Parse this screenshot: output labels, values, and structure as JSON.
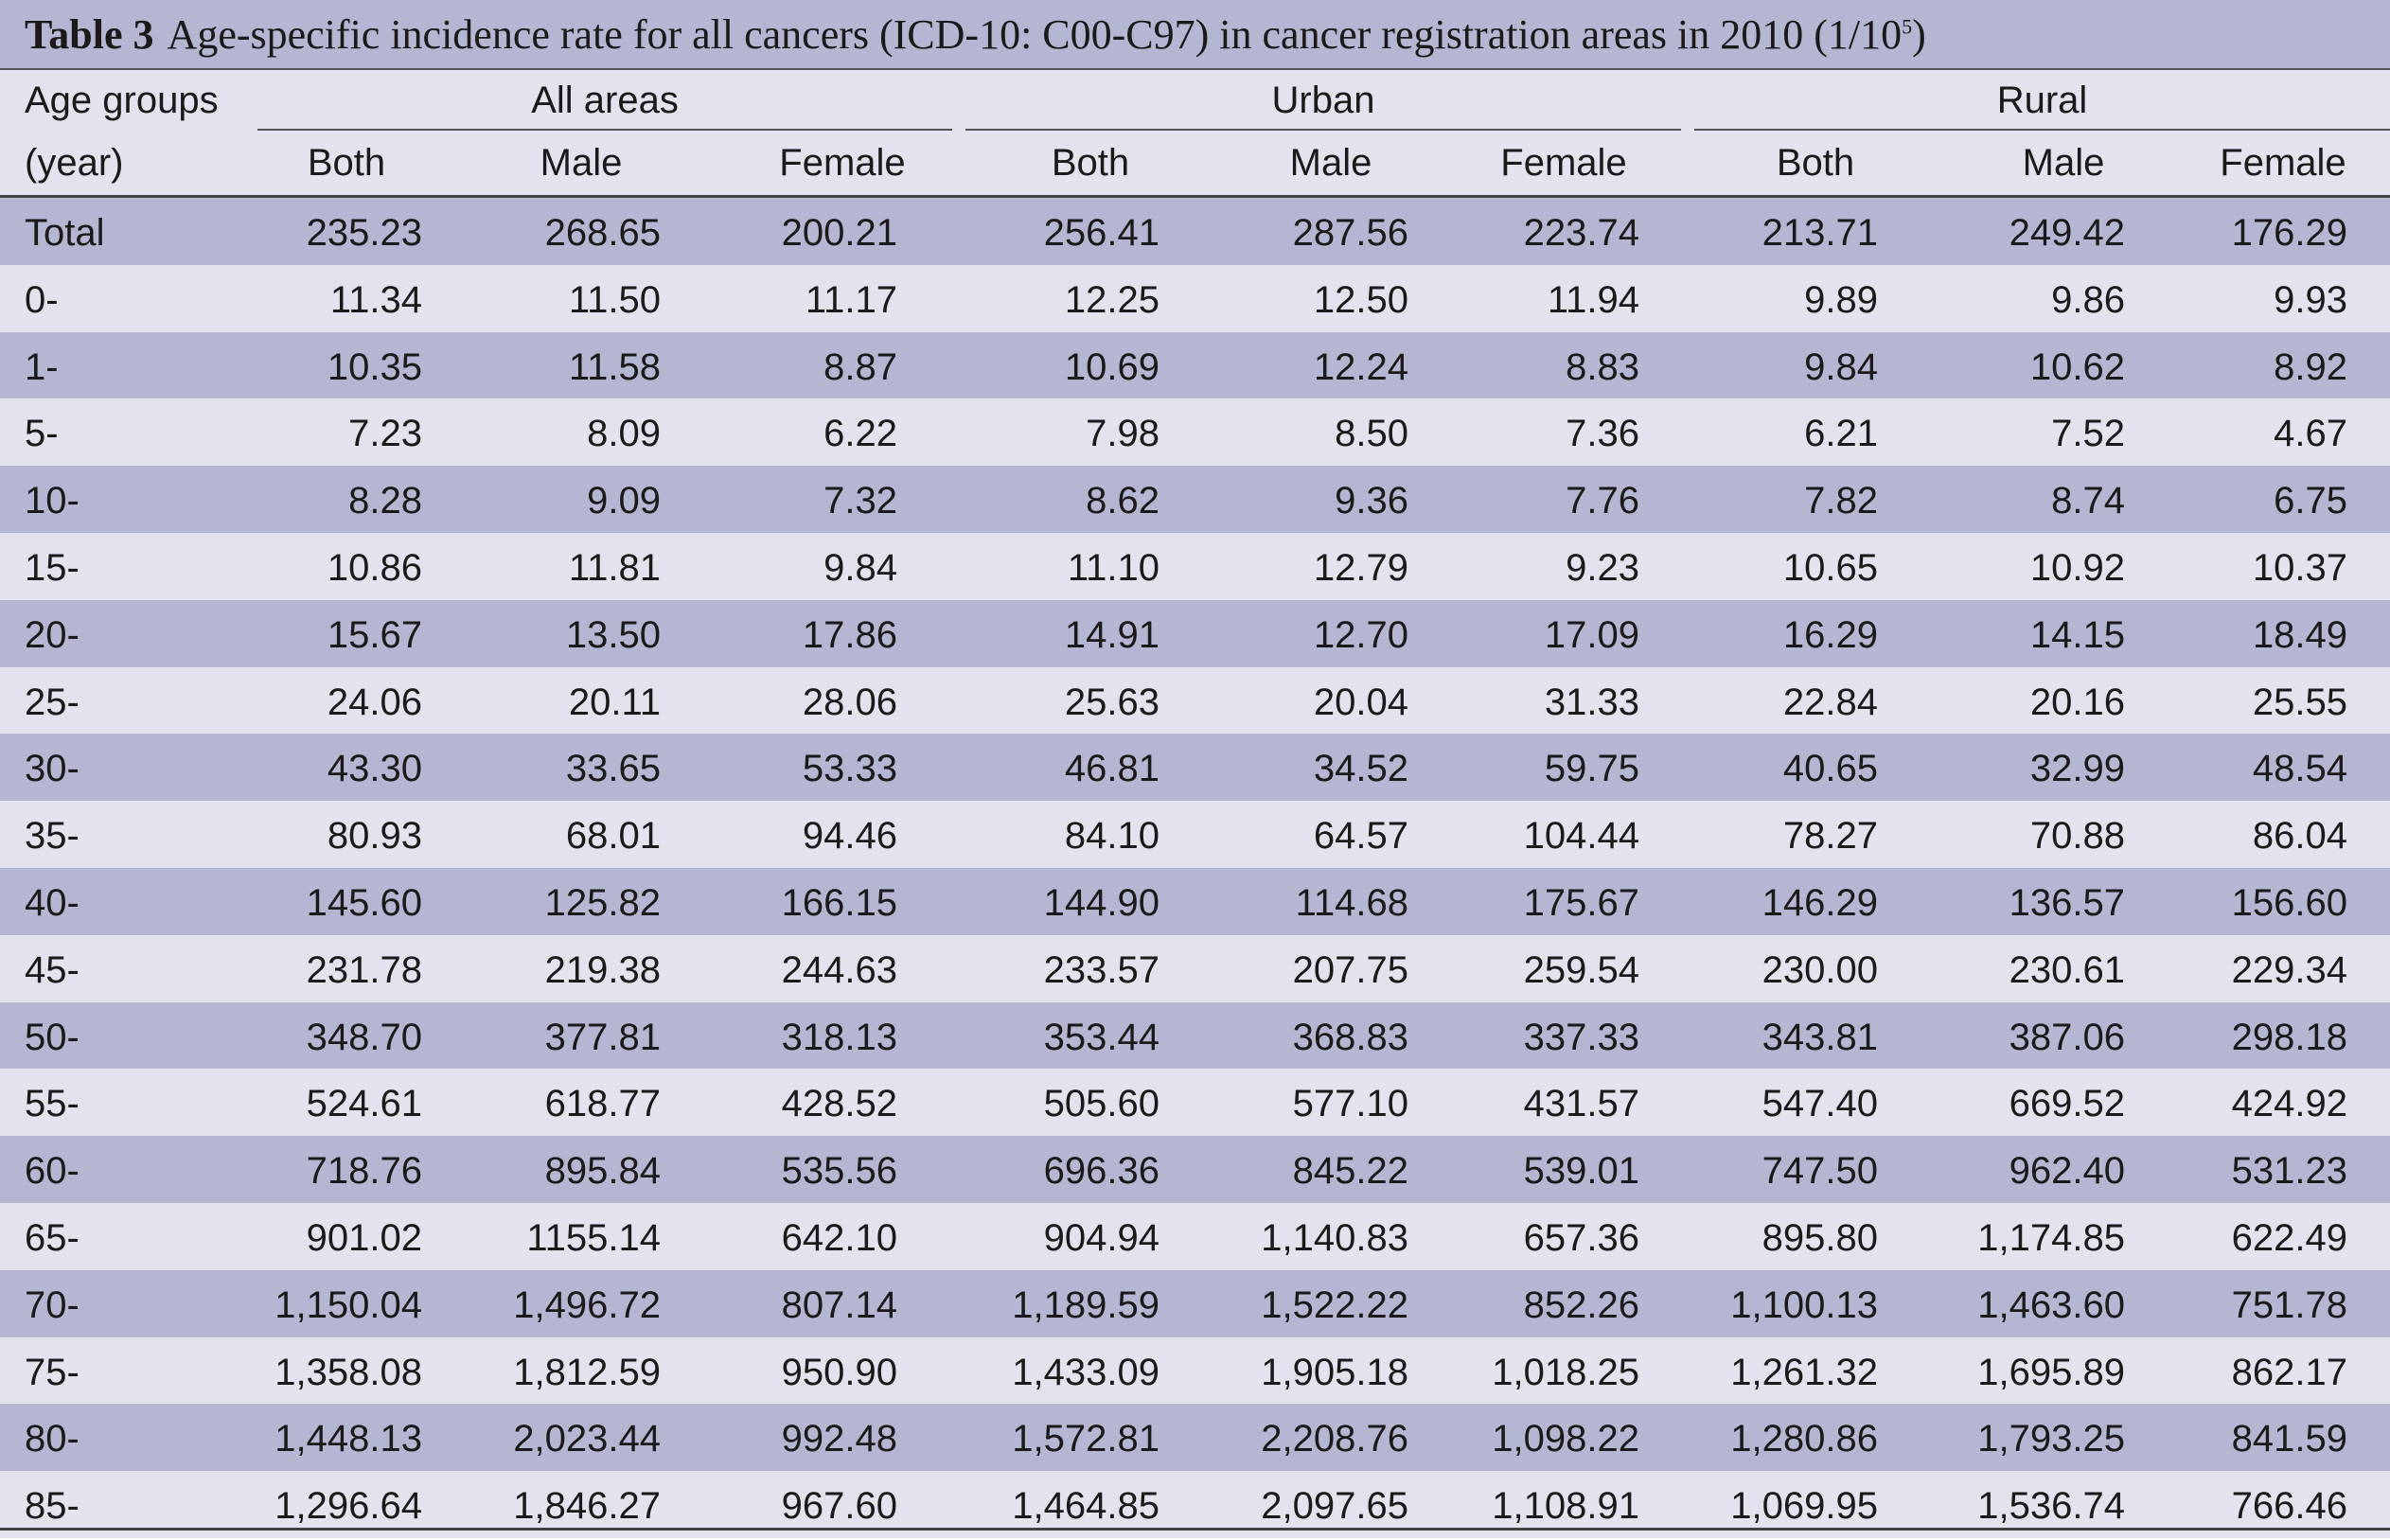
{
  "title": {
    "label": "Table 3",
    "text": "Age-specific incidence rate for all cancers (ICD-10: C00-C97) in cancer registration areas in 2010 (1/10",
    "sup": "5",
    "close": ")"
  },
  "header": {
    "age_groups_line1": "Age groups",
    "age_groups_line2": "(year)",
    "groups": [
      "All areas",
      "Urban",
      "Rural"
    ],
    "subcols": [
      "Both",
      "Male",
      "Female",
      "Both",
      "Male",
      "Female",
      "Both",
      "Male",
      "Female"
    ]
  },
  "rows": [
    {
      "label": "Total",
      "values": [
        "235.23",
        "268.65",
        "200.21",
        "256.41",
        "287.56",
        "223.74",
        "213.71",
        "249.42",
        "176.29"
      ]
    },
    {
      "label": "0-",
      "values": [
        "11.34",
        "11.50",
        "11.17",
        "12.25",
        "12.50",
        "11.94",
        "9.89",
        "9.86",
        "9.93"
      ]
    },
    {
      "label": "1-",
      "values": [
        "10.35",
        "11.58",
        "8.87",
        "10.69",
        "12.24",
        "8.83",
        "9.84",
        "10.62",
        "8.92"
      ]
    },
    {
      "label": "5-",
      "values": [
        "7.23",
        "8.09",
        "6.22",
        "7.98",
        "8.50",
        "7.36",
        "6.21",
        "7.52",
        "4.67"
      ]
    },
    {
      "label": "10-",
      "values": [
        "8.28",
        "9.09",
        "7.32",
        "8.62",
        "9.36",
        "7.76",
        "7.82",
        "8.74",
        "6.75"
      ]
    },
    {
      "label": "15-",
      "values": [
        "10.86",
        "11.81",
        "9.84",
        "11.10",
        "12.79",
        "9.23",
        "10.65",
        "10.92",
        "10.37"
      ]
    },
    {
      "label": "20-",
      "values": [
        "15.67",
        "13.50",
        "17.86",
        "14.91",
        "12.70",
        "17.09",
        "16.29",
        "14.15",
        "18.49"
      ]
    },
    {
      "label": "25-",
      "values": [
        "24.06",
        "20.11",
        "28.06",
        "25.63",
        "20.04",
        "31.33",
        "22.84",
        "20.16",
        "25.55"
      ]
    },
    {
      "label": "30-",
      "values": [
        "43.30",
        "33.65",
        "53.33",
        "46.81",
        "34.52",
        "59.75",
        "40.65",
        "32.99",
        "48.54"
      ]
    },
    {
      "label": "35-",
      "values": [
        "80.93",
        "68.01",
        "94.46",
        "84.10",
        "64.57",
        "104.44",
        "78.27",
        "70.88",
        "86.04"
      ]
    },
    {
      "label": "40-",
      "values": [
        "145.60",
        "125.82",
        "166.15",
        "144.90",
        "114.68",
        "175.67",
        "146.29",
        "136.57",
        "156.60"
      ]
    },
    {
      "label": "45-",
      "values": [
        "231.78",
        "219.38",
        "244.63",
        "233.57",
        "207.75",
        "259.54",
        "230.00",
        "230.61",
        "229.34"
      ]
    },
    {
      "label": "50-",
      "values": [
        "348.70",
        "377.81",
        "318.13",
        "353.44",
        "368.83",
        "337.33",
        "343.81",
        "387.06",
        "298.18"
      ]
    },
    {
      "label": "55-",
      "values": [
        "524.61",
        "618.77",
        "428.52",
        "505.60",
        "577.10",
        "431.57",
        "547.40",
        "669.52",
        "424.92"
      ]
    },
    {
      "label": "60-",
      "values": [
        "718.76",
        "895.84",
        "535.56",
        "696.36",
        "845.22",
        "539.01",
        "747.50",
        "962.40",
        "531.23"
      ]
    },
    {
      "label": "65-",
      "values": [
        "901.02",
        "1155.14",
        "642.10",
        "904.94",
        "1,140.83",
        "657.36",
        "895.80",
        "1,174.85",
        "622.49"
      ]
    },
    {
      "label": "70-",
      "values": [
        "1,150.04",
        "1,496.72",
        "807.14",
        "1,189.59",
        "1,522.22",
        "852.26",
        "1,100.13",
        "1,463.60",
        "751.78"
      ]
    },
    {
      "label": "75-",
      "values": [
        "1,358.08",
        "1,812.59",
        "950.90",
        "1,433.09",
        "1,905.18",
        "1,018.25",
        "1,261.32",
        "1,695.89",
        "862.17"
      ]
    },
    {
      "label": "80-",
      "values": [
        "1,448.13",
        "2,023.44",
        "992.48",
        "1,572.81",
        "2,208.76",
        "1,098.22",
        "1,280.86",
        "1,793.25",
        "841.59"
      ]
    },
    {
      "label": "85-",
      "values": [
        "1,296.64",
        "1,846.27",
        "967.60",
        "1,464.85",
        "2,097.65",
        "1,108.91",
        "1,069.95",
        "1,536.74",
        "766.46"
      ]
    }
  ]
}
